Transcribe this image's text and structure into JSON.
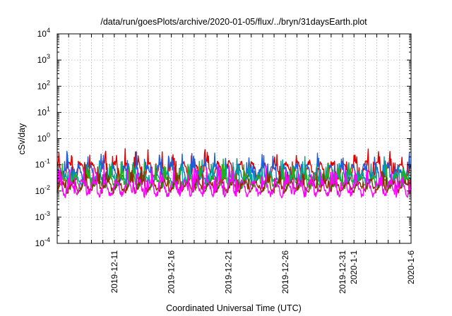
{
  "chart_data": {
    "type": "line",
    "title": "/data/run/goesPlots/archive/2020-01-05/flux/../bryn/31daysEarth.plot",
    "xlabel": "Coordinated Universal Time (UTC)",
    "ylabel": "cSv/day",
    "y_scale": "log",
    "ylim": [
      0.0001,
      10000
    ],
    "xlim": [
      "2019-12-06",
      "2020-01-06"
    ],
    "grid": true,
    "y_ticks": [
      {
        "value": 0.0001,
        "base": "10",
        "exp": "-4"
      },
      {
        "value": 0.001,
        "base": "10",
        "exp": "-3"
      },
      {
        "value": 0.01,
        "base": "10",
        "exp": "-2"
      },
      {
        "value": 0.1,
        "base": "10",
        "exp": "-1"
      },
      {
        "value": 1,
        "base": "10",
        "exp": "0"
      },
      {
        "value": 10,
        "base": "10",
        "exp": "1"
      },
      {
        "value": 100,
        "base": "10",
        "exp": "2"
      },
      {
        "value": 1000,
        "base": "10",
        "exp": "3"
      },
      {
        "value": 10000,
        "base": "10",
        "exp": "4"
      }
    ],
    "x_tick_labels": [
      {
        "date": "2019-12-11",
        "label": "2019-12-11"
      },
      {
        "date": "2019-12-16",
        "label": "2019-12-16"
      },
      {
        "date": "2019-12-21",
        "label": "2019-12-21"
      },
      {
        "date": "2019-12-26",
        "label": "2019-12-26"
      },
      {
        "date": "2019-12-31",
        "label": "2019-12-31"
      },
      {
        "date": "2020-01-01",
        "label": "2020-1-1"
      },
      {
        "date": "2020-01-06",
        "label": "2020-1-6"
      }
    ],
    "series": [
      {
        "color": "#e00000",
        "base": 0.06,
        "amp": 0.3,
        "seed": 11
      },
      {
        "color": "#1b5fe0",
        "base": 0.045,
        "amp": 0.3,
        "seed": 23
      },
      {
        "color": "#00a0a0",
        "base": 0.028,
        "amp": 0.22,
        "seed": 37
      },
      {
        "color": "#20b020",
        "base": 0.022,
        "amp": 0.2,
        "seed": 41
      },
      {
        "color": "#8a3000",
        "base": 0.015,
        "amp": 0.18,
        "seed": 53
      },
      {
        "color": "#ff00ff",
        "base": 0.013,
        "amp": 0.26,
        "seed": 67
      }
    ]
  }
}
